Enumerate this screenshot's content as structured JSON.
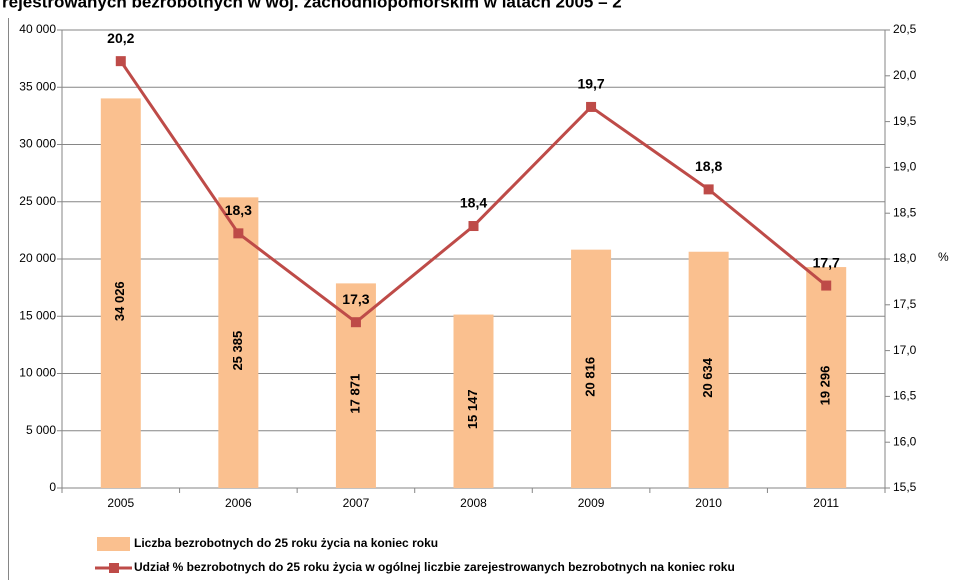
{
  "chart_data": {
    "type": "combo",
    "title": "rejestrowanych bezrobotnych w woj. zachodniopomorskim w latach 2005 – 2",
    "categories": [
      "2005",
      "2006",
      "2007",
      "2008",
      "2009",
      "2010",
      "2011"
    ],
    "series": [
      {
        "name": "Liczba bezrobotnych do 25 roku życia na koniec roku",
        "type": "bar",
        "color": "#fac08f",
        "values": [
          34026,
          25385,
          17871,
          15147,
          20816,
          20634,
          19296
        ],
        "value_labels": [
          "34 026",
          "25 385",
          "17 871",
          "15 147",
          "20 816",
          "20 634",
          "19 296"
        ]
      },
      {
        "name": "Udział % bezrobotnych do 25 roku życia w ogólnej liczbie zarejestrowanych bezrobotnych na koniec roku",
        "type": "line",
        "axis": "y2",
        "color": "#be4b48",
        "values": [
          20.16,
          18.28,
          17.31,
          18.36,
          19.66,
          18.76,
          17.71
        ],
        "value_labels": [
          "20,2",
          "18,3",
          "17,3",
          "18,4",
          "19,7",
          "18,8",
          "17,7"
        ]
      }
    ],
    "ylim": [
      0,
      40000
    ],
    "yticks": [
      0,
      {
        "value": 5000,
        "label": "5 000"
      },
      {
        "value": 10000,
        "label": "10 000"
      },
      {
        "value": 15000,
        "label": "15 000"
      },
      {
        "value": 20000,
        "label": "20 000"
      },
      {
        "value": 25000,
        "label": "25 000"
      },
      {
        "value": 30000,
        "label": "30 000"
      },
      {
        "value": 35000,
        "label": "35 000"
      },
      {
        "value": 40000,
        "label": "40 000"
      }
    ],
    "y2lim": [
      15.5,
      20.5
    ],
    "y2ticks": [
      {
        "value": 15.5,
        "label": "15,5"
      },
      {
        "value": 16,
        "label": "16,0"
      },
      {
        "value": 16.5,
        "label": "16,5"
      },
      {
        "value": 17,
        "label": "17,0"
      },
      {
        "value": 17.5,
        "label": "17,5"
      },
      {
        "value": 18,
        "label": "18,0"
      },
      {
        "value": 18.5,
        "label": "18,5"
      },
      {
        "value": 19,
        "label": "19,0"
      },
      {
        "value": 19.5,
        "label": "19,5"
      },
      {
        "value": 20,
        "label": "20,0"
      },
      {
        "value": 20.5,
        "label": "20,5"
      }
    ],
    "y2label": "%",
    "grid": true
  }
}
